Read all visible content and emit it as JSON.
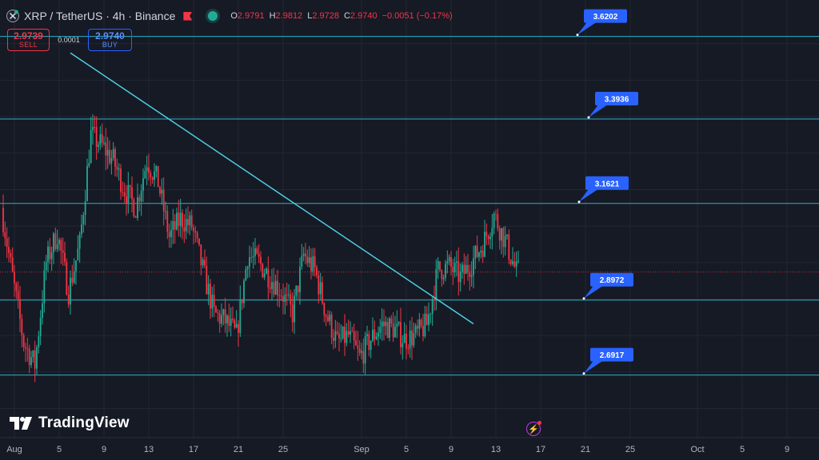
{
  "header": {
    "symbol_title": "XRP / TetherUS · 4h · Binance",
    "ohlc": [
      {
        "key": "O",
        "value": "2.9791"
      },
      {
        "key": "H",
        "value": "2.9812"
      },
      {
        "key": "L",
        "value": "2.9728"
      },
      {
        "key": "C",
        "value": "2.9740"
      }
    ],
    "change": "−0.0051 (−0.17%)"
  },
  "trade": {
    "sell_price": "2.9739",
    "sell_label": "SELL",
    "spread": "0.0001",
    "buy_price": "2.9740",
    "buy_label": "BUY"
  },
  "logo_text": "TradingView",
  "icons": {
    "symbol": "xrp-coin-icon",
    "flag": "flag-icon",
    "status": "market-open-dot-icon",
    "logo": "tradingview-logo-icon",
    "bolt": "lightning-icon"
  },
  "colors": {
    "background": "#161a25",
    "up": "#22ab94",
    "down": "#f23645",
    "level_line": "#2ab2c9",
    "trendline": "#4dd0e1",
    "label_bg": "#2962ff"
  },
  "chart_data": {
    "type": "candlestick",
    "x_tick_labels": [
      "Aug",
      "5",
      "9",
      "13",
      "17",
      "21",
      "25",
      "Sep",
      "5",
      "9",
      "13",
      "17",
      "21",
      "25",
      "Oct",
      "5",
      "9"
    ],
    "x_ticks": [
      "2025-08-01",
      "2025-08-05",
      "2025-08-09",
      "2025-08-13",
      "2025-08-17",
      "2025-08-21",
      "2025-08-25",
      "2025-09-01",
      "2025-09-05",
      "2025-09-09",
      "2025-09-13",
      "2025-09-17",
      "2025-09-21",
      "2025-09-25",
      "2025-10-01",
      "2025-10-05",
      "2025-10-09"
    ],
    "y_range": [
      2.52,
      3.72
    ],
    "horizontal_levels": [
      3.6202,
      3.3936,
      3.1621,
      2.8972,
      2.6917
    ],
    "current_price": 2.974,
    "trendline": {
      "start": [
        "2025-08-06",
        3.575
      ],
      "end": [
        "2025-09-11",
        2.832
      ]
    },
    "close_path": [
      [
        "2025-07-31",
        3.15
      ],
      [
        "2025-08-01",
        2.96
      ],
      [
        "2025-08-02",
        2.78
      ],
      [
        "2025-08-03",
        2.72
      ],
      [
        "2025-08-04",
        3.0
      ],
      [
        "2025-08-05",
        3.08
      ],
      [
        "2025-08-06",
        2.92
      ],
      [
        "2025-08-07",
        3.05
      ],
      [
        "2025-08-08",
        3.35
      ],
      [
        "2025-08-09",
        3.32
      ],
      [
        "2025-08-10",
        3.28
      ],
      [
        "2025-08-11",
        3.2
      ],
      [
        "2025-08-12",
        3.15
      ],
      [
        "2025-08-13",
        3.28
      ],
      [
        "2025-08-14",
        3.22
      ],
      [
        "2025-08-15",
        3.07
      ],
      [
        "2025-08-16",
        3.12
      ],
      [
        "2025-08-17",
        3.1
      ],
      [
        "2025-08-18",
        2.98
      ],
      [
        "2025-08-19",
        2.86
      ],
      [
        "2025-08-20",
        2.84
      ],
      [
        "2025-08-21",
        2.8
      ],
      [
        "2025-08-22",
        3.02
      ],
      [
        "2025-08-23",
        3.0
      ],
      [
        "2025-08-24",
        2.96
      ],
      [
        "2025-08-25",
        2.92
      ],
      [
        "2025-08-26",
        2.86
      ],
      [
        "2025-08-27",
        3.02
      ],
      [
        "2025-08-28",
        2.98
      ],
      [
        "2025-08-29",
        2.86
      ],
      [
        "2025-08-30",
        2.78
      ],
      [
        "2025-08-31",
        2.8
      ],
      [
        "2025-09-01",
        2.74
      ],
      [
        "2025-09-02",
        2.79
      ],
      [
        "2025-09-03",
        2.83
      ],
      [
        "2025-09-04",
        2.82
      ],
      [
        "2025-09-05",
        2.79
      ],
      [
        "2025-09-06",
        2.8
      ],
      [
        "2025-09-07",
        2.83
      ],
      [
        "2025-09-08",
        2.98
      ],
      [
        "2025-09-09",
        2.99
      ],
      [
        "2025-09-10",
        2.96
      ],
      [
        "2025-09-11",
        3.0
      ],
      [
        "2025-09-12",
        3.05
      ],
      [
        "2025-09-13",
        3.13
      ],
      [
        "2025-09-14",
        3.06
      ],
      [
        "2025-09-15",
        2.974
      ]
    ]
  }
}
